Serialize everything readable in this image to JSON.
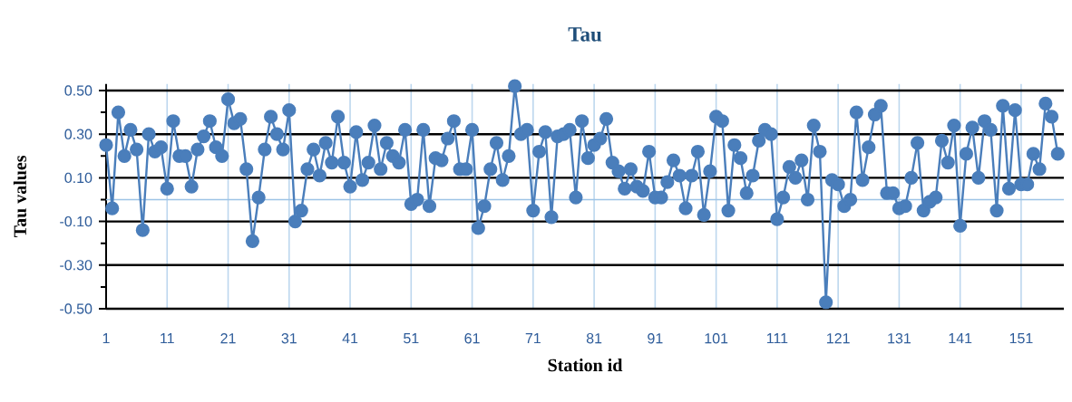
{
  "chart_data": {
    "type": "line",
    "title": "Tau",
    "xlabel": "Station id",
    "ylabel": "Tau values",
    "x": [
      1,
      2,
      3,
      4,
      5,
      6,
      7,
      8,
      9,
      10,
      11,
      12,
      13,
      14,
      15,
      16,
      17,
      18,
      19,
      20,
      21,
      22,
      23,
      24,
      25,
      26,
      27,
      28,
      29,
      30,
      31,
      32,
      33,
      34,
      35,
      36,
      37,
      38,
      39,
      40,
      41,
      42,
      43,
      44,
      45,
      46,
      47,
      48,
      49,
      50,
      51,
      52,
      53,
      54,
      55,
      56,
      57,
      58,
      59,
      60,
      61,
      62,
      63,
      64,
      65,
      66,
      67,
      68,
      69,
      70,
      71,
      72,
      73,
      74,
      75,
      76,
      77,
      78,
      79,
      80,
      81,
      82,
      83,
      84,
      85,
      86,
      87,
      88,
      89,
      90,
      91,
      92,
      93,
      94,
      95,
      96,
      97,
      98,
      99,
      100,
      101,
      102,
      103,
      104,
      105,
      106,
      107,
      108,
      109,
      110,
      111,
      112,
      113,
      114,
      115,
      116,
      117,
      118,
      119,
      120,
      121,
      122,
      123,
      124,
      125,
      126,
      127,
      128,
      129,
      130,
      131,
      132,
      133,
      134,
      135,
      136,
      137,
      138,
      139,
      140,
      141,
      142,
      143,
      144,
      145,
      146,
      147,
      148,
      149,
      150,
      151,
      152,
      153,
      154,
      155,
      156,
      157
    ],
    "series": [
      {
        "color": "#4a7ebb",
        "values": [
          0.25,
          -0.04,
          0.4,
          0.2,
          0.32,
          0.23,
          -0.14,
          0.3,
          0.22,
          0.24,
          0.05,
          0.36,
          0.2,
          0.2,
          0.06,
          0.23,
          0.29,
          0.36,
          0.24,
          0.2,
          0.46,
          0.35,
          0.37,
          0.14,
          -0.19,
          0.01,
          0.23,
          0.38,
          0.3,
          0.23,
          0.41,
          -0.1,
          -0.05,
          0.14,
          0.23,
          0.11,
          0.26,
          0.17,
          0.38,
          0.17,
          0.06,
          0.31,
          0.09,
          0.17,
          0.34,
          0.14,
          0.26,
          0.2,
          0.17,
          0.32,
          -0.02,
          0.0,
          0.32,
          -0.03,
          0.19,
          0.18,
          0.28,
          0.36,
          0.14,
          0.14,
          0.32,
          -0.13,
          -0.03,
          0.14,
          0.26,
          0.09,
          0.2,
          0.52,
          0.3,
          0.32,
          -0.05,
          0.22,
          0.31,
          -0.08,
          0.29,
          0.3,
          0.32,
          0.01,
          0.36,
          0.19,
          0.25,
          0.28,
          0.37,
          0.17,
          0.13,
          0.05,
          0.14,
          0.06,
          0.04,
          0.22,
          0.01,
          0.01,
          0.08,
          0.18,
          0.11,
          -0.04,
          0.11,
          0.22,
          -0.07,
          0.13,
          0.38,
          0.36,
          -0.05,
          0.25,
          0.19,
          0.03,
          0.11,
          0.27,
          0.32,
          0.3,
          -0.09,
          0.01,
          0.15,
          0.1,
          0.18,
          0.0,
          0.34,
          0.22,
          -0.47,
          0.09,
          0.07,
          -0.03,
          0.0,
          0.4,
          0.09,
          0.24,
          0.39,
          0.43,
          0.03,
          0.03,
          -0.04,
          -0.03,
          0.1,
          0.26,
          -0.05,
          -0.01,
          0.01,
          0.27,
          0.17,
          0.34,
          -0.12,
          0.21,
          0.33,
          0.1,
          0.36,
          0.32,
          -0.05,
          0.43,
          0.05,
          0.41,
          0.07,
          0.07,
          0.21,
          0.14,
          0.44,
          0.38,
          0.21
        ]
      }
    ],
    "xlim": [
      1,
      158
    ],
    "ylim": [
      -0.5,
      0.53
    ],
    "xticks": [
      1,
      11,
      21,
      31,
      41,
      51,
      61,
      71,
      81,
      91,
      101,
      111,
      121,
      131,
      141,
      151
    ],
    "yticks": [
      {
        "value": 0.5,
        "label": "0.50"
      },
      {
        "value": 0.4,
        "label": null
      },
      {
        "value": 0.3,
        "label": "0.30"
      },
      {
        "value": 0.2,
        "label": null
      },
      {
        "value": 0.1,
        "label": "0.10"
      },
      {
        "value": 0.0,
        "label": null
      },
      {
        "value": -0.1,
        "label": "-0.10"
      },
      {
        "value": -0.2,
        "label": null
      },
      {
        "value": -0.3,
        "label": "-0.30"
      },
      {
        "value": -0.4,
        "label": null
      },
      {
        "value": -0.5,
        "label": "-0.50"
      }
    ],
    "ref_lines": [
      {
        "axis": "y",
        "value": 0,
        "color": "#9dc3e6"
      }
    ],
    "grid": true,
    "marker": "circle",
    "line_style": "solid"
  }
}
